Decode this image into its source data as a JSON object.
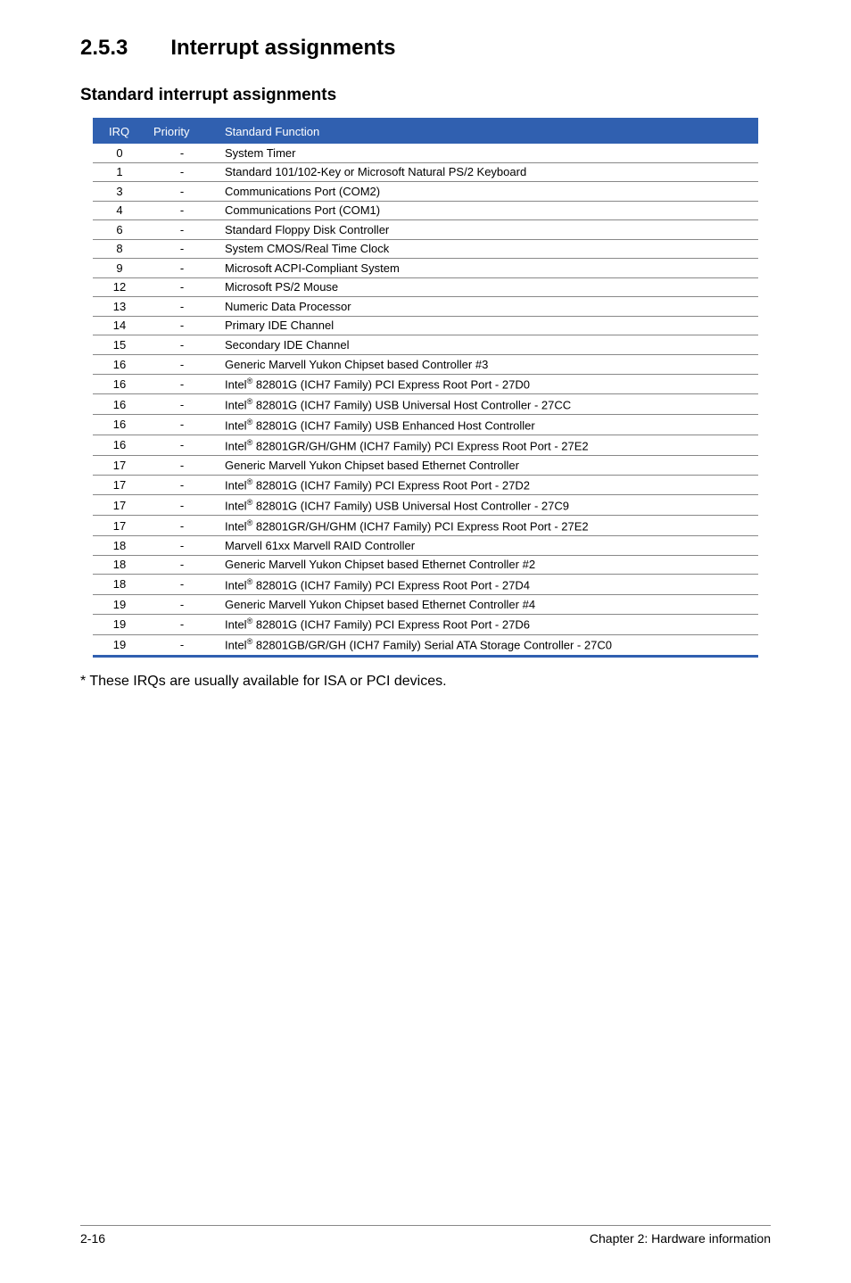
{
  "section": {
    "number": "2.5.3",
    "title": "Interrupt assignments"
  },
  "subheading": "Standard interrupt assignments",
  "table": {
    "header": {
      "irq": "IRQ",
      "priority": "Priority",
      "func": "Standard Function"
    },
    "rows": [
      {
        "irq": "0",
        "priority": "-",
        "func": "System Timer"
      },
      {
        "irq": "1",
        "priority": "-",
        "func": "Standard 101/102-Key or Microsoft Natural PS/2 Keyboard"
      },
      {
        "irq": "3",
        "priority": "-",
        "func": "Communications Port (COM2)"
      },
      {
        "irq": "4",
        "priority": "-",
        "func": "Communications Port (COM1)"
      },
      {
        "irq": "6",
        "priority": "-",
        "func": "Standard Floppy Disk Controller"
      },
      {
        "irq": "8",
        "priority": "-",
        "func": "System CMOS/Real Time Clock"
      },
      {
        "irq": "9",
        "priority": "-",
        "func": "Microsoft ACPI-Compliant System"
      },
      {
        "irq": "12",
        "priority": "-",
        "func": "Microsoft PS/2 Mouse"
      },
      {
        "irq": "13",
        "priority": "-",
        "func": "Numeric Data Processor"
      },
      {
        "irq": "14",
        "priority": "-",
        "func": "Primary IDE Channel"
      },
      {
        "irq": "15",
        "priority": "-",
        "func": "Secondary IDE Channel"
      },
      {
        "irq": "16",
        "priority": "-",
        "func": "Generic Marvell Yukon Chipset based Controller #3"
      },
      {
        "irq": "16",
        "priority": "-",
        "func": "Intel® 82801G (ICH7 Family) PCI Express Root Port - 27D0"
      },
      {
        "irq": "16",
        "priority": "-",
        "func": "Intel® 82801G (ICH7 Family) USB Universal Host  Controller - 27CC"
      },
      {
        "irq": "16",
        "priority": "-",
        "func": "Intel® 82801G (ICH7 Family) USB Enhanced Host Controller"
      },
      {
        "irq": "16",
        "priority": "-",
        "func": "Intel® 82801GR/GH/GHM (ICH7 Family) PCI Express Root Port - 27E2"
      },
      {
        "irq": "17",
        "priority": "-",
        "func": "Generic Marvell Yukon Chipset based Ethernet Controller"
      },
      {
        "irq": "17",
        "priority": "-",
        "func": "Intel® 82801G (ICH7 Family) PCI Express Root Port - 27D2"
      },
      {
        "irq": "17",
        "priority": "-",
        "func": "Intel® 82801G (ICH7 Family) USB Universal Host Controller - 27C9"
      },
      {
        "irq": "17",
        "priority": "-",
        "func": "Intel® 82801GR/GH/GHM (ICH7 Family) PCI Express Root Port - 27E2"
      },
      {
        "irq": "18",
        "priority": "-",
        "func": "Marvell 61xx Marvell RAID Controller"
      },
      {
        "irq": "18",
        "priority": "-",
        "func": "Generic Marvell Yukon Chipset based Ethernet Controller #2"
      },
      {
        "irq": "18",
        "priority": "-",
        "func": "Intel® 82801G (ICH7 Family) PCI Express Root Port - 27D4"
      },
      {
        "irq": "19",
        "priority": "-",
        "func": "Generic Marvell Yukon Chipset based Ethernet Controller #4"
      },
      {
        "irq": "19",
        "priority": "-",
        "func": "Intel® 82801G (ICH7 Family) PCI Express Root Port - 27D6"
      },
      {
        "irq": "19",
        "priority": "-",
        "func": "Intel® 82801GB/GR/GH (ICH7 Family) Serial ATA  Storage Controller - 27C0"
      }
    ]
  },
  "footnote": "* These IRQs are usually available for ISA or PCI devices.",
  "footer": {
    "left": "2-16",
    "right": "Chapter 2: Hardware information"
  }
}
